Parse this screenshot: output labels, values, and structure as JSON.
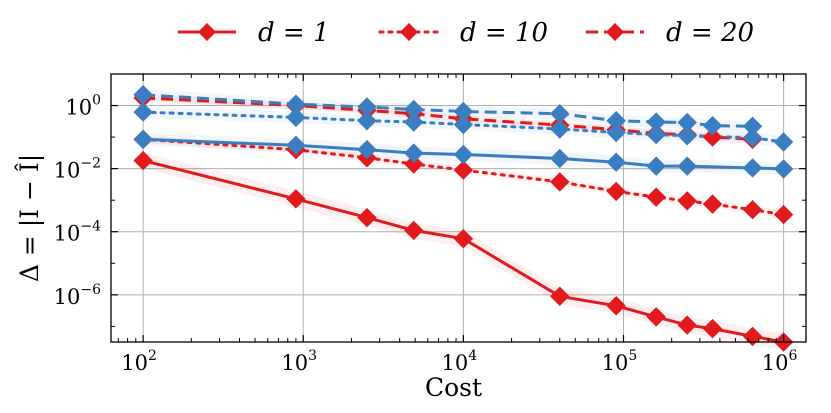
{
  "chart_data": {
    "type": "line",
    "title": "",
    "xlabel": "Cost",
    "ylabel": "Δ = |I − Î|",
    "xscale": "log",
    "yscale": "log",
    "xlim": [
      63,
      1380000
    ],
    "ylim": [
      3.2e-08,
      10
    ],
    "xticks": [
      {
        "value": 100,
        "label": "10",
        "exp": "2"
      },
      {
        "value": 1000,
        "label": "10",
        "exp": "3"
      },
      {
        "value": 10000,
        "label": "10",
        "exp": "4"
      },
      {
        "value": 100000,
        "label": "10",
        "exp": "5"
      },
      {
        "value": 1000000,
        "label": "10",
        "exp": "6"
      }
    ],
    "yticks": [
      {
        "value": 1,
        "label": "10",
        "exp": "0"
      },
      {
        "value": 0.01,
        "label": "10",
        "exp": "−2"
      },
      {
        "value": 0.0001,
        "label": "10",
        "exp": "−4"
      },
      {
        "value": 1e-06,
        "label": "10",
        "exp": "−6"
      }
    ],
    "grid": true,
    "legend_position": "top-center, outside",
    "legend": [
      {
        "label": "d = 1",
        "style": "solid"
      },
      {
        "label": "d = 10",
        "style": "dotted"
      },
      {
        "label": "d = 20",
        "style": "dashed"
      }
    ],
    "colors": {
      "red": "#e31a1c",
      "blue": "#3a7dc0"
    },
    "series": [
      {
        "name": "d = 1 (red)",
        "color": "#e31a1c",
        "style": "solid",
        "x": [
          100,
          900,
          2500,
          4900,
          10000,
          40000,
          90000,
          160000,
          250000,
          360000,
          640000,
          1000000
        ],
        "y": [
          0.018,
          0.0011,
          0.00028,
          0.00011,
          6e-05,
          9e-07,
          4.5e-07,
          2e-07,
          1.1e-07,
          8.5e-08,
          4.8e-08,
          3.2e-08
        ],
        "band": 1.8
      },
      {
        "name": "d = 10 (red)",
        "color": "#e31a1c",
        "style": "dotted",
        "x": [
          100,
          900,
          2500,
          4900,
          10000,
          40000,
          90000,
          160000,
          250000,
          360000,
          640000,
          1000000
        ],
        "y": [
          0.085,
          0.04,
          0.022,
          0.014,
          0.009,
          0.0038,
          0.0019,
          0.00125,
          0.00095,
          0.00075,
          0.0005,
          0.00035
        ],
        "band": 1.3
      },
      {
        "name": "d = 20 (red)",
        "color": "#e31a1c",
        "style": "dashed",
        "x": [
          100,
          900,
          2500,
          4900,
          10000,
          40000,
          90000,
          160000,
          250000,
          360000,
          640000
        ],
        "y": [
          1.75,
          1.0,
          0.7,
          0.55,
          0.38,
          0.24,
          0.17,
          0.13,
          0.12,
          0.1,
          0.085
        ],
        "band": 1.3
      },
      {
        "name": "d = 1 (blue)",
        "color": "#3a7dc0",
        "style": "solid",
        "x": [
          100,
          900,
          2500,
          4900,
          10000,
          40000,
          90000,
          160000,
          250000,
          640000,
          1000000
        ],
        "y": [
          0.085,
          0.055,
          0.04,
          0.031,
          0.028,
          0.021,
          0.016,
          0.012,
          0.012,
          0.0105,
          0.0098
        ],
        "band": 1.6
      },
      {
        "name": "d = 10 (blue)",
        "color": "#3a7dc0",
        "style": "dotted",
        "x": [
          100,
          900,
          2500,
          4900,
          10000,
          40000,
          90000,
          160000,
          250000,
          640000,
          1000000
        ],
        "y": [
          0.62,
          0.42,
          0.33,
          0.3,
          0.25,
          0.18,
          0.14,
          0.12,
          0.11,
          0.095,
          0.07
        ],
        "band": 1.5
      },
      {
        "name": "d = 20 (blue)",
        "color": "#3a7dc0",
        "style": "dashed",
        "x": [
          100,
          900,
          2500,
          4900,
          10000,
          40000,
          90000,
          160000,
          250000,
          360000,
          640000
        ],
        "y": [
          2.2,
          1.1,
          0.9,
          0.75,
          0.65,
          0.55,
          0.33,
          0.3,
          0.29,
          0.23,
          0.22
        ],
        "band": 1.5
      }
    ]
  }
}
